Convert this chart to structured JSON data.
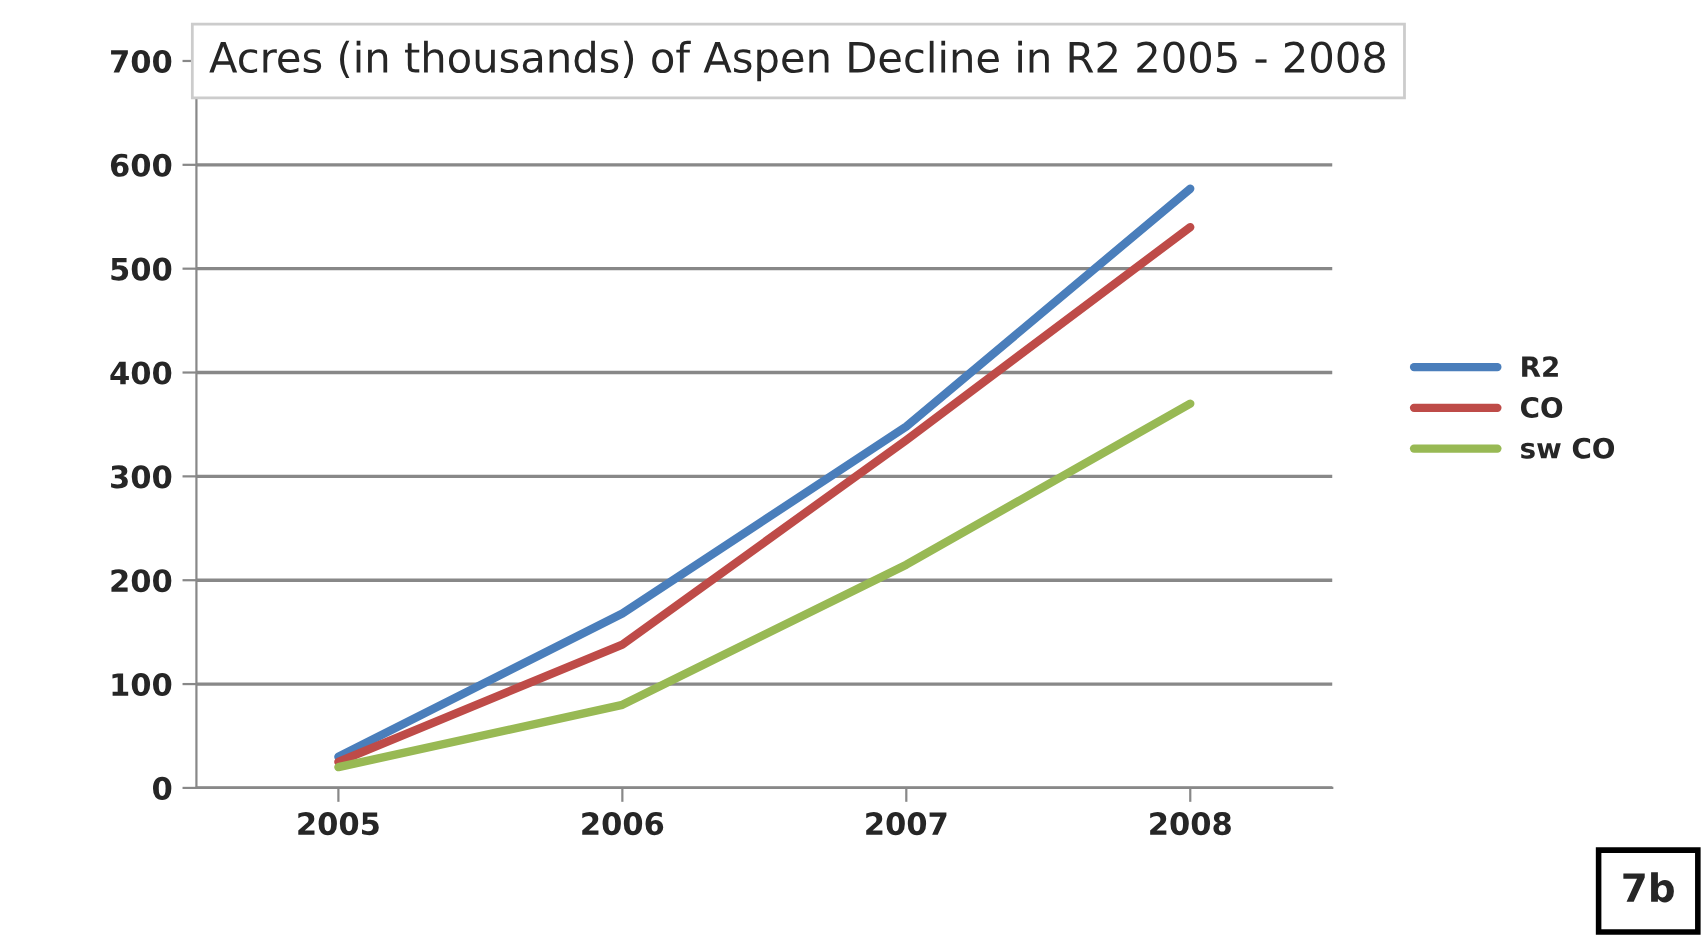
{
  "chart_data": {
    "type": "line",
    "title": "Acres (in thousands) of Aspen Decline in R2 2005 - 2008",
    "categories": [
      "2005",
      "2006",
      "2007",
      "2008"
    ],
    "series": [
      {
        "name": "R2",
        "color": "#4a7ebb",
        "values": [
          30,
          168,
          348,
          577
        ]
      },
      {
        "name": "CO",
        "color": "#be4b48",
        "values": [
          25,
          138,
          335,
          540
        ]
      },
      {
        "name": "sw CO",
        "color": "#98b954",
        "values": [
          20,
          80,
          215,
          370
        ]
      }
    ],
    "ylim": [
      0,
      700
    ],
    "yticks": [
      0,
      100,
      200,
      300,
      400,
      500,
      600,
      700
    ],
    "grid": "y",
    "legend": "right",
    "marker": "none",
    "line_style": "solid",
    "annotations": [
      "7b"
    ]
  }
}
